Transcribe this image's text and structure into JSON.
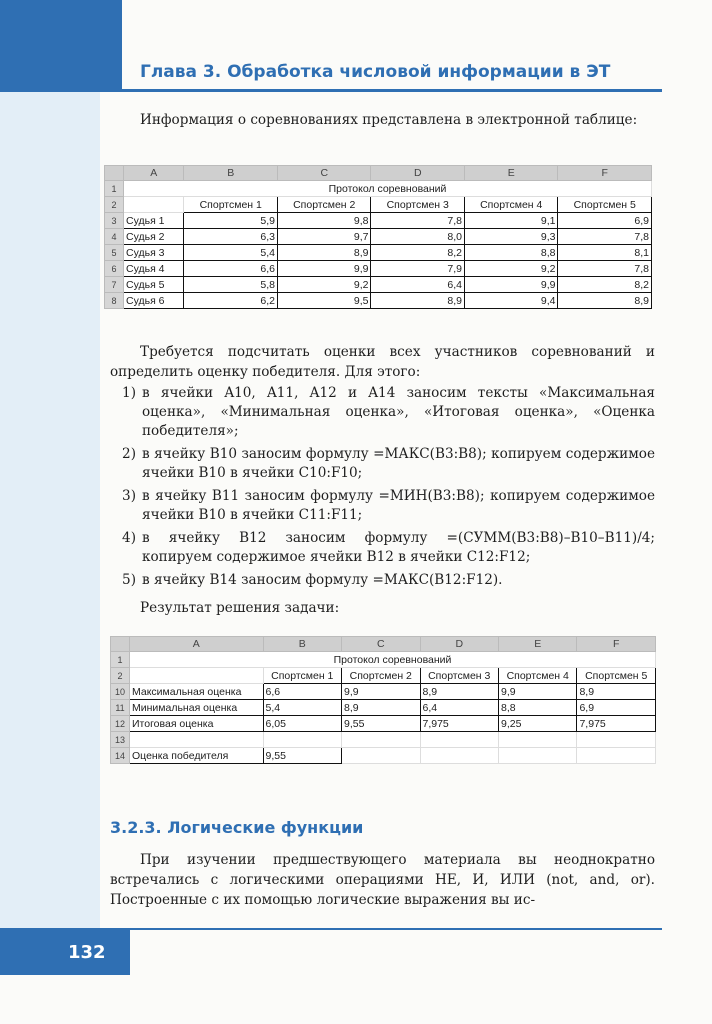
{
  "header": {
    "chapter_title": "Глава 3. Обработка числовой информации в ЭТ"
  },
  "intro": "Информация о соревнованиях представлена в электронной таблице:",
  "table1": {
    "columns": [
      "",
      "A",
      "B",
      "C",
      "D",
      "E",
      "F"
    ],
    "title_row": {
      "num": "1",
      "title": "Протокол соревнований"
    },
    "header_row": {
      "num": "2",
      "cells": [
        "",
        "Спортсмен 1",
        "Спортсмен 2",
        "Спортсмен 3",
        "Спортсмен 4",
        "Спортсмен 5"
      ]
    },
    "rows": [
      {
        "num": "3",
        "label": "Судья 1",
        "values": [
          "5,9",
          "9,8",
          "7,8",
          "9,1",
          "6,9"
        ]
      },
      {
        "num": "4",
        "label": "Судья 2",
        "values": [
          "6,3",
          "9,7",
          "8,0",
          "9,3",
          "7,8"
        ]
      },
      {
        "num": "5",
        "label": "Судья 3",
        "values": [
          "5,4",
          "8,9",
          "8,2",
          "8,8",
          "8,1"
        ]
      },
      {
        "num": "6",
        "label": "Судья 4",
        "values": [
          "6,6",
          "9,9",
          "7,9",
          "9,2",
          "7,8"
        ]
      },
      {
        "num": "7",
        "label": "Судья 5",
        "values": [
          "5,8",
          "9,2",
          "6,4",
          "9,9",
          "8,2"
        ]
      },
      {
        "num": "8",
        "label": "Судья 6",
        "values": [
          "6,2",
          "9,5",
          "8,9",
          "9,4",
          "8,9"
        ]
      }
    ]
  },
  "task": "Требуется подсчитать оценки всех участников соревнований и определить оценку победителя. Для этого:",
  "steps": [
    {
      "n": "1)",
      "text": "в ячейки A10, A11, A12 и A14 заносим тексты «Максимальная оценка», «Минимальная оценка», «Итоговая оценка», «Оценка победителя»;"
    },
    {
      "n": "2)",
      "text": "в ячейку B10 заносим формулу =МАКС(B3:B8); копируем содержимое ячейки B10 в ячейки C10:F10;"
    },
    {
      "n": "3)",
      "text": "в ячейку B11 заносим формулу =МИН(B3:B8); копируем содержимое ячейки B10 в ячейки C11:F11;"
    },
    {
      "n": "4)",
      "text": "в ячейку B12 заносим формулу =(СУММ(B3:B8)–B10–B11)/4; копируем содержимое ячейки B12 в ячейки C12:F12;"
    },
    {
      "n": "5)",
      "text": "в ячейку B14 заносим формулу =МАКС(B12:F12)."
    }
  ],
  "result_label": "Результат решения задачи:",
  "table2": {
    "columns": [
      "",
      "A",
      "B",
      "C",
      "D",
      "E",
      "F"
    ],
    "title_row": {
      "num": "1",
      "title": "Протокол соревнований"
    },
    "header_row": {
      "num": "2",
      "cells": [
        "",
        "Спортсмен 1",
        "Спортсмен 2",
        "Спортсмен 3",
        "Спортсмен 4",
        "Спортсмен 5"
      ]
    },
    "rows": [
      {
        "num": "10",
        "label": "Максимальная оценка",
        "values": [
          "6,6",
          "9,9",
          "8,9",
          "9,9",
          "8,9"
        ]
      },
      {
        "num": "11",
        "label": "Минимальная оценка",
        "values": [
          "5,4",
          "8,9",
          "6,4",
          "8,8",
          "6,9"
        ]
      },
      {
        "num": "12",
        "label": "Итоговая оценка",
        "values": [
          "6,05",
          "9,55",
          "7,975",
          "9,25",
          "7,975"
        ]
      }
    ],
    "empty_row": {
      "num": "13"
    },
    "winner_row": {
      "num": "14",
      "label": "Оценка победителя",
      "value": "9,55"
    }
  },
  "section": {
    "title": "3.2.3. Логические функции"
  },
  "section_text": "При изучении предшествующего материала вы неоднократно встречались с логическими операциями НЕ, И, ИЛИ (not, and, or). Построенные с их помощью логические выражения вы ис-",
  "footer": {
    "page_number": "132"
  },
  "colors": {
    "accent": "#2f6fb3",
    "side_strip": "#e3eef7"
  }
}
